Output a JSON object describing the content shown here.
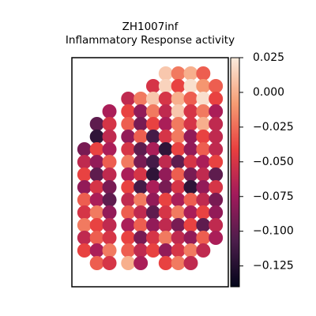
{
  "chart_data": {
    "type": "scatter",
    "title": "ZH1007inf",
    "subtitle": "Inflammatory Response activity",
    "xlim": [
      0,
      100
    ],
    "ylim": [
      0,
      145
    ],
    "clim": [
      -0.14,
      0.025
    ],
    "colormap": [
      "#03051a",
      "#4c1d4b",
      "#a11a5b",
      "#e83f3f",
      "#f69c73",
      "#faebdd"
    ],
    "cticks": [
      {
        "value": 0.025,
        "label": "0.025"
      },
      {
        "value": 0,
        "label": "0.000"
      },
      {
        "value": -0.025,
        "label": "−0.025"
      },
      {
        "value": -0.05,
        "label": "−0.050"
      },
      {
        "value": -0.075,
        "label": "−0.075"
      },
      {
        "value": -0.1,
        "label": "−0.100"
      },
      {
        "value": -0.125,
        "label": "−0.125"
      }
    ],
    "x": [
      60,
      68,
      76,
      84,
      52,
      60,
      68,
      76,
      84,
      92,
      36,
      44,
      52,
      60,
      68,
      76,
      84,
      92,
      24,
      36,
      44,
      52,
      60,
      68,
      76,
      84,
      92,
      16,
      24,
      36,
      44,
      52,
      60,
      68,
      76,
      84,
      92,
      16,
      24,
      36,
      44,
      52,
      60,
      68,
      76,
      84,
      92,
      8,
      16,
      24,
      36,
      44,
      52,
      60,
      68,
      76,
      84,
      92,
      8,
      16,
      24,
      36,
      44,
      52,
      60,
      68,
      76,
      84,
      92,
      8,
      16,
      24,
      36,
      44,
      52,
      60,
      68,
      76,
      84,
      92,
      8,
      16,
      24,
      36,
      44,
      52,
      60,
      68,
      76,
      84,
      92,
      8,
      16,
      24,
      36,
      44,
      52,
      60,
      68,
      76,
      84,
      92,
      8,
      16,
      24,
      36,
      44,
      52,
      60,
      68,
      76,
      84,
      92,
      8,
      16,
      24,
      36,
      44,
      52,
      60,
      68,
      76,
      84,
      92,
      8,
      16,
      24,
      36,
      44,
      52,
      60,
      68,
      76,
      84,
      92,
      8,
      16,
      24,
      36,
      44,
      52,
      60,
      68,
      76,
      84,
      16,
      24,
      36,
      44,
      60,
      68,
      76
    ],
    "y": [
      135,
      135,
      135,
      135,
      127,
      127,
      127,
      127,
      127,
      127,
      119,
      119,
      119,
      119,
      119,
      119,
      119,
      119,
      111,
      111,
      111,
      111,
      111,
      111,
      111,
      111,
      111,
      103,
      103,
      103,
      103,
      103,
      103,
      103,
      103,
      103,
      103,
      95,
      95,
      95,
      95,
      95,
      95,
      95,
      95,
      95,
      95,
      87,
      87,
      87,
      87,
      87,
      87,
      87,
      87,
      87,
      87,
      87,
      79,
      79,
      79,
      79,
      79,
      79,
      79,
      79,
      79,
      79,
      79,
      71,
      71,
      71,
      71,
      71,
      71,
      71,
      71,
      71,
      71,
      71,
      63,
      63,
      63,
      63,
      63,
      63,
      63,
      63,
      63,
      63,
      63,
      55,
      55,
      55,
      55,
      55,
      55,
      55,
      55,
      55,
      55,
      55,
      47,
      47,
      47,
      47,
      47,
      47,
      47,
      47,
      47,
      47,
      47,
      39,
      39,
      39,
      39,
      39,
      39,
      39,
      39,
      39,
      39,
      39,
      31,
      31,
      31,
      31,
      31,
      31,
      31,
      31,
      31,
      31,
      31,
      23,
      23,
      23,
      23,
      23,
      23,
      23,
      23,
      23,
      23,
      15,
      15,
      15,
      15,
      15,
      15,
      15
    ],
    "values": [
      0.01,
      -0.02,
      0.0,
      -0.03,
      -0.05,
      0.015,
      -0.04,
      0.02,
      -0.01,
      -0.03,
      -0.06,
      -0.02,
      0.01,
      -0.05,
      0.0,
      -0.03,
      0.02,
      -0.04,
      -0.07,
      -0.04,
      -0.08,
      -0.02,
      -0.06,
      0.01,
      -0.05,
      -0.02,
      -0.07,
      -0.1,
      -0.05,
      -0.03,
      -0.09,
      -0.04,
      -0.07,
      -0.02,
      -0.05,
      0.0,
      -0.06,
      -0.12,
      -0.06,
      -0.08,
      -0.03,
      -0.11,
      -0.05,
      -0.02,
      -0.08,
      -0.04,
      -0.06,
      -0.09,
      -0.04,
      -0.07,
      -0.05,
      -0.1,
      -0.07,
      -0.12,
      -0.04,
      -0.08,
      -0.03,
      -0.06,
      -0.06,
      -0.08,
      -0.03,
      -0.02,
      -0.09,
      -0.11,
      -0.06,
      -0.1,
      -0.05,
      -0.07,
      -0.04,
      -0.04,
      -0.1,
      -0.06,
      -0.07,
      -0.05,
      -0.12,
      -0.08,
      -0.03,
      -0.09,
      -0.06,
      -0.1,
      -0.08,
      -0.05,
      -0.09,
      -0.04,
      -0.11,
      -0.07,
      -0.09,
      -0.05,
      -0.12,
      -0.08,
      -0.05,
      -0.03,
      -0.07,
      -0.1,
      -0.06,
      -0.02,
      -0.08,
      -0.04,
      -0.07,
      -0.03,
      -0.06,
      -0.09,
      -0.05,
      -0.02,
      -0.08,
      -0.03,
      -0.06,
      -0.1,
      -0.05,
      -0.02,
      -0.07,
      -0.04,
      -0.08,
      -0.02,
      -0.04,
      -0.06,
      -0.07,
      -0.03,
      -0.08,
      -0.06,
      -0.09,
      -0.04,
      -0.1,
      -0.06,
      -0.06,
      -0.03,
      -0.05,
      -0.04,
      -0.09,
      -0.05,
      -0.02,
      -0.06,
      -0.08,
      -0.03,
      -0.07,
      -0.04,
      -0.07,
      -0.02,
      -0.03,
      -0.06,
      -0.04,
      -0.08,
      -0.05,
      -0.02,
      -0.06,
      -0.03,
      -0.05,
      0.0,
      -0.07,
      -0.04,
      -0.02,
      -0.06
    ]
  }
}
